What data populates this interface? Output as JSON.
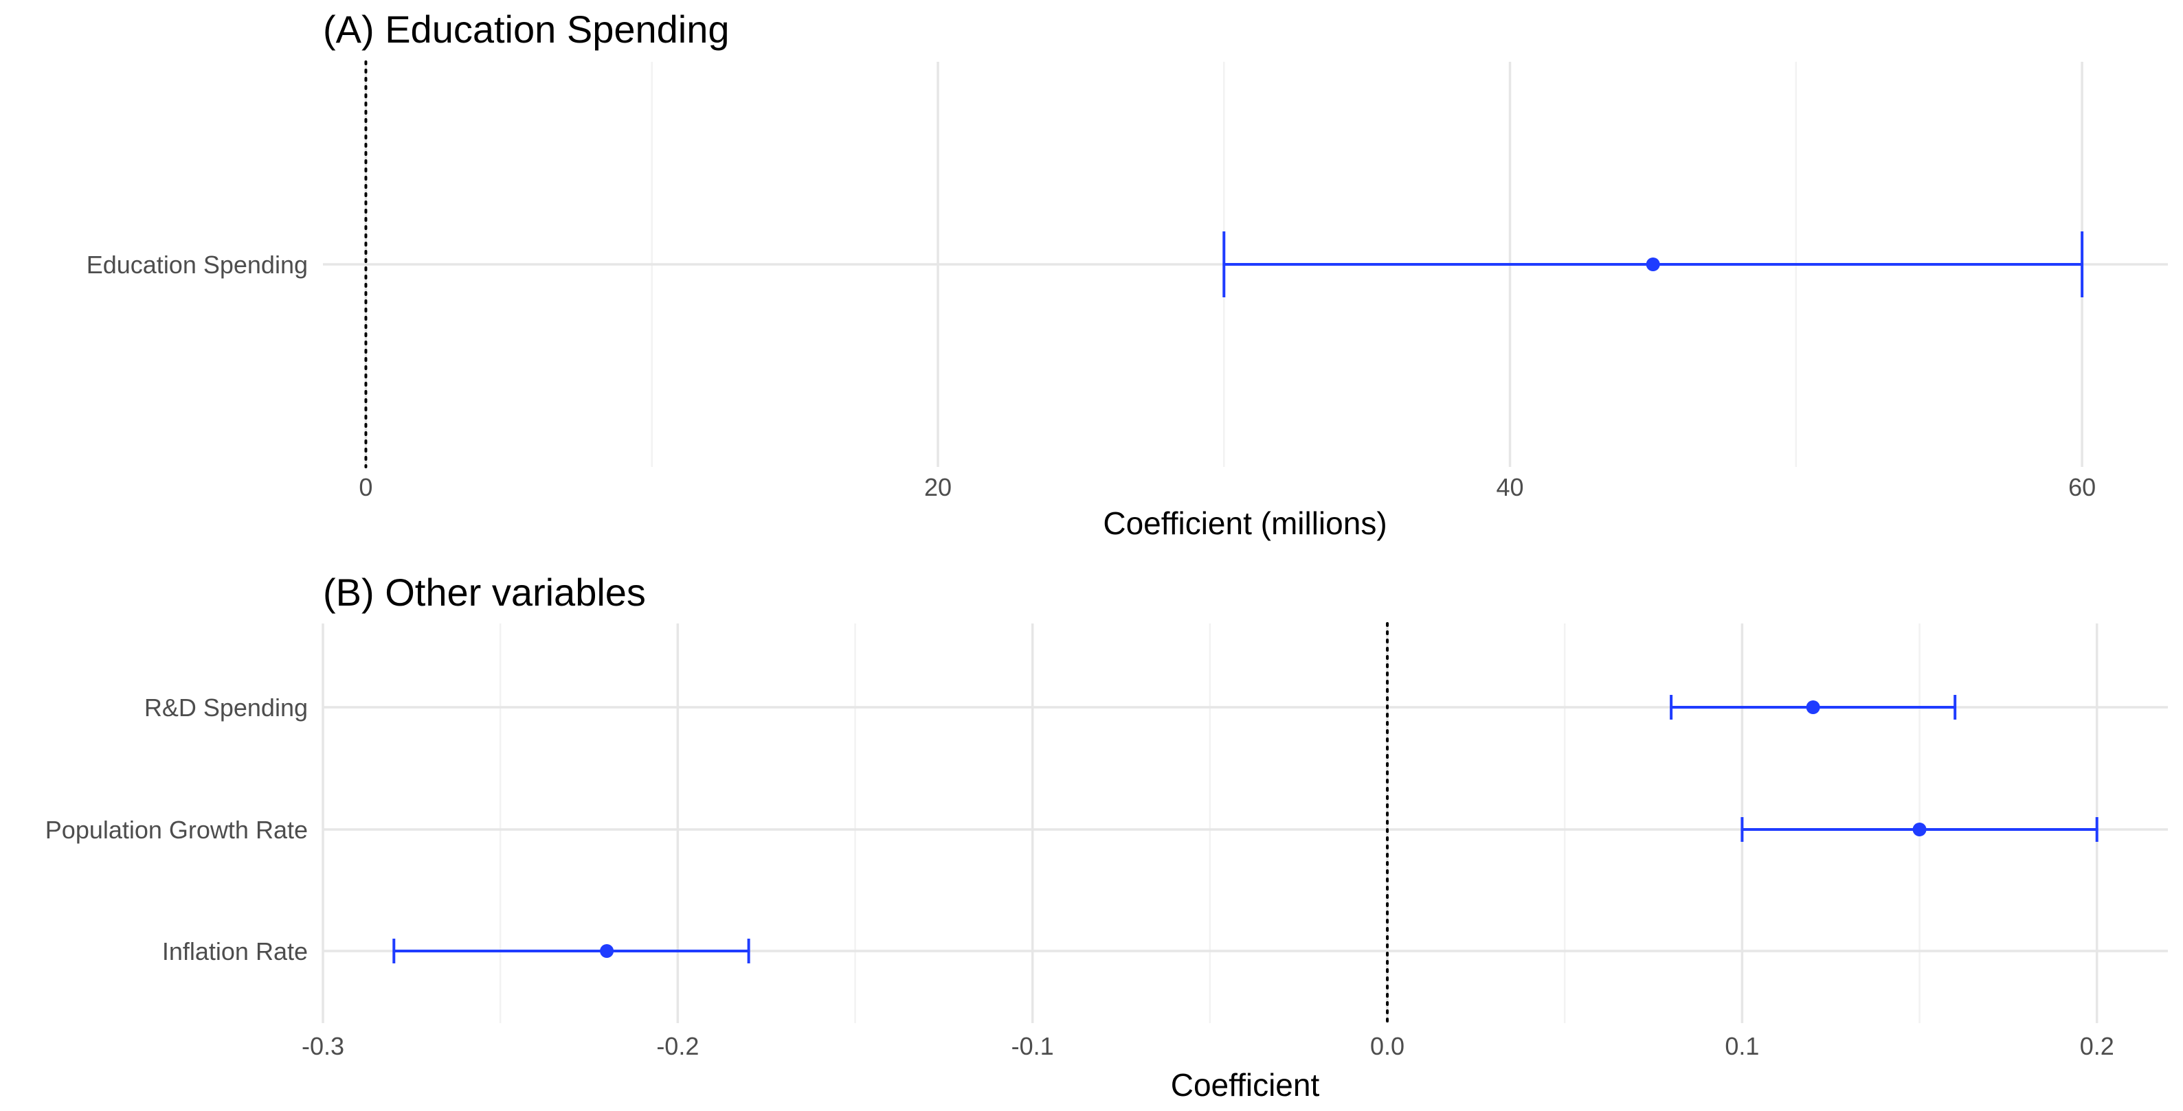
{
  "chart_data": [
    {
      "type": "errorbar",
      "title": "(A) Education Spending",
      "xlabel": "Coefficient (millions)",
      "ylabel": "",
      "xlim": [
        -1.5,
        63
      ],
      "xticks": [
        0,
        20,
        40,
        60
      ],
      "xtick_labels": [
        "0",
        "20",
        "40",
        "60"
      ],
      "minor_xticks": [
        10,
        30,
        50
      ],
      "reference_line": 0,
      "grid": true,
      "color": "#1f3cff",
      "categories": [
        "Education Spending"
      ],
      "estimates": [
        45
      ],
      "lower": [
        30
      ],
      "upper": [
        60
      ]
    },
    {
      "type": "errorbar",
      "title": "(B) Other variables",
      "xlabel": "Coefficient",
      "ylabel": "",
      "xlim": [
        -0.3,
        0.22
      ],
      "xticks": [
        -0.3,
        -0.2,
        -0.1,
        0.0,
        0.1,
        0.2
      ],
      "xtick_labels": [
        "-0.3",
        "-0.2",
        "-0.1",
        "0.0",
        "0.1",
        "0.2"
      ],
      "minor_xticks": [
        -0.25,
        -0.15,
        -0.05,
        0.05,
        0.15
      ],
      "reference_line": 0,
      "grid": true,
      "color": "#1f3cff",
      "categories": [
        "R&D Spending",
        "Population Growth Rate",
        "Inflation Rate"
      ],
      "estimates": [
        0.12,
        0.15,
        -0.22
      ],
      "lower": [
        0.08,
        0.1,
        -0.28
      ],
      "upper": [
        0.16,
        0.2,
        -0.18
      ]
    }
  ]
}
